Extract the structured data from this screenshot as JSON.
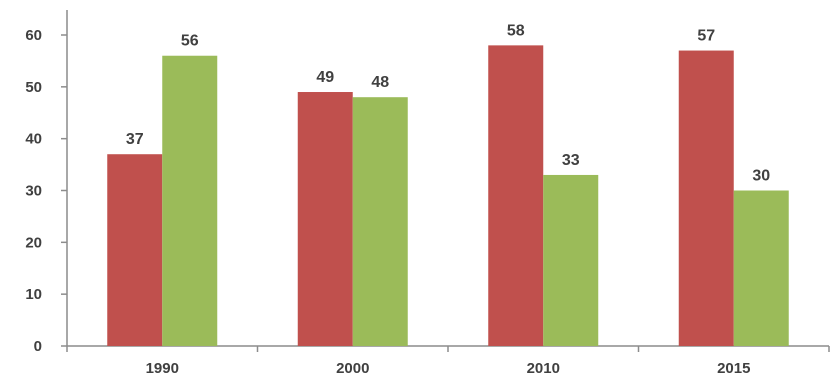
{
  "chart_data": {
    "type": "bar",
    "title": "",
    "xlabel": "",
    "ylabel": "",
    "categories": [
      "1990",
      "2000",
      "2010",
      "2015"
    ],
    "series": [
      {
        "color": "#c0504d",
        "values": [
          37,
          49,
          58,
          57
        ]
      },
      {
        "color": "#9bbb59",
        "values": [
          56,
          48,
          33,
          30
        ]
      }
    ],
    "ylim": [
      0,
      60
    ],
    "yticks": [
      "0",
      "10",
      "20",
      "30",
      "40",
      "50",
      "60"
    ],
    "grid": false,
    "legend": "none",
    "data_labels": true
  }
}
